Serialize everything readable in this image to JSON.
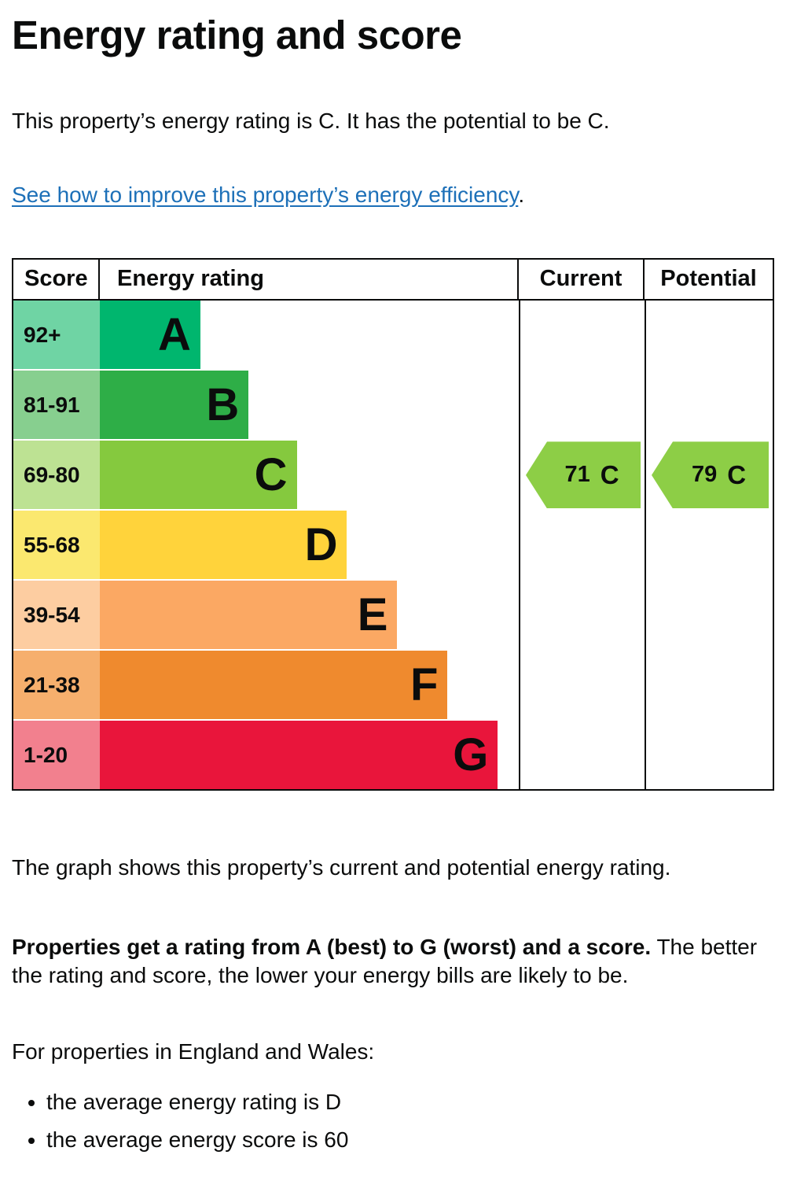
{
  "page": {
    "title": "Energy rating and score",
    "intro": "This property’s energy rating is C. It has the potential to be C.",
    "improve_link": "See how to improve this property’s energy efficiency",
    "improve_link_suffix": ".",
    "graph_caption": "The graph shows this property’s current and potential energy rating.",
    "explain_bold": "Properties get a rating from A (best) to G (worst) and a score.",
    "explain_rest": " The better the rating and score, the lower your energy bills are likely to be.",
    "regional_intro": "For properties in England and Wales:",
    "bullets": [
      "the average energy rating is D",
      "the average energy score is 60"
    ]
  },
  "chart_data": {
    "type": "bar",
    "title": "Energy rating and score",
    "headers": {
      "score": "Score",
      "rating": "Energy rating",
      "current": "Current",
      "potential": "Potential"
    },
    "bands": [
      {
        "score_range": "92+",
        "letter": "A",
        "bar_color": "#00b66e",
        "score_cell_color": "#6fd4a4",
        "bar_width_pct": 24
      },
      {
        "score_range": "81-91",
        "letter": "B",
        "bar_color": "#2eae47",
        "score_cell_color": "#87cf8f",
        "bar_width_pct": 35.5
      },
      {
        "score_range": "69-80",
        "letter": "C",
        "bar_color": "#85c93e",
        "score_cell_color": "#bde293",
        "bar_width_pct": 47
      },
      {
        "score_range": "55-68",
        "letter": "D",
        "bar_color": "#ffd33b",
        "score_cell_color": "#fbe86f",
        "bar_width_pct": 59
      },
      {
        "score_range": "39-54",
        "letter": "E",
        "bar_color": "#fba863",
        "score_cell_color": "#fdcda1",
        "bar_width_pct": 71
      },
      {
        "score_range": "21-38",
        "letter": "F",
        "bar_color": "#ef8a2e",
        "score_cell_color": "#f6af6d",
        "bar_width_pct": 83
      },
      {
        "score_range": "1-20",
        "letter": "G",
        "bar_color": "#e9153b",
        "score_cell_color": "#f2808e",
        "bar_width_pct": 95
      }
    ],
    "current": {
      "label": "Current",
      "score": "71",
      "letter": "C",
      "band_index": 2,
      "arrow_color": "#8dce46"
    },
    "potential": {
      "label": "Potential",
      "score": "79",
      "letter": "C",
      "band_index": 2,
      "arrow_color": "#8dce46"
    }
  },
  "colors": {
    "link": "#1d70b8",
    "text": "#0b0c0c"
  }
}
